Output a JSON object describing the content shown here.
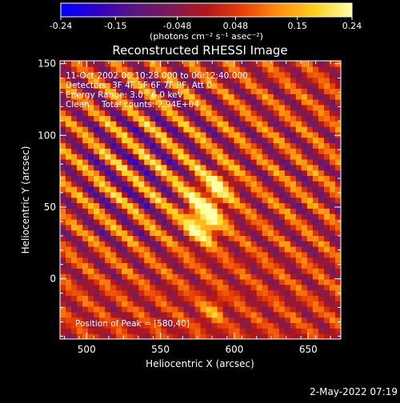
{
  "footer": {
    "timestamp": "2-May-2022 07:19"
  },
  "chart_data": {
    "type": "heatmap",
    "title": "Reconstructed RHESSI Image",
    "xlabel": "Heliocentric X (arcsec)",
    "ylabel": "Heliocentric Y (arcsec)",
    "xlim": [
      482,
      672
    ],
    "ylim": [
      -42,
      152
    ],
    "xticks": [
      "500",
      "550",
      "600",
      "650"
    ],
    "yticks": [
      "0",
      "50",
      "100",
      "150"
    ],
    "colorbar": {
      "ticks": [
        "-0.24",
        "-0.15",
        "-0.048",
        "0.048",
        "0.15",
        "0.24"
      ],
      "unit": "(photons cm⁻² s⁻¹ asec⁻²)",
      "range": [
        -0.24,
        0.24
      ],
      "colors": [
        "#0000ff",
        "#3000c8",
        "#5a1480",
        "#7a1a5a",
        "#b01818",
        "#e84008",
        "#ff9010",
        "#ffd020",
        "#ffffa8"
      ]
    },
    "annotations": [
      "11-Oct-2002 06:10:28.000 to 06:12:40.000",
      "Detectors: 3F 4F 5F 6F 7F 8F, Att 0",
      "Energy Range: 3.0 - 6.0 keV",
      "Clean",
      "Total counts: 2.94E+04"
    ],
    "peak_label": "Position of Peak = [580,40]",
    "peak": {
      "x": 580,
      "y": 40
    },
    "secondary_peaks": [
      {
        "x": 590,
        "y": 65
      },
      {
        "x": 585,
        "y": -22
      }
    ],
    "fringe_angle_deg": 48,
    "fringe_period_arcsec": 17,
    "colors": {
      "background": "#000000",
      "text": "#ffffff"
    }
  }
}
